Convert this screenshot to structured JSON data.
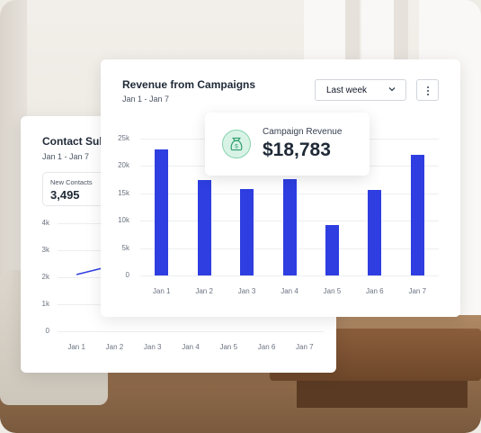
{
  "colors": {
    "bar": "#2e3ee0",
    "line": "#2e3ee0",
    "icon_bg": "#d8f3e6",
    "icon_stroke": "#2f9e6e"
  },
  "contacts_card": {
    "title": "Contact Subscriptions",
    "date_range": "Jan 1 - Jan 7",
    "stat": {
      "label": "New Contacts",
      "value": "3,495"
    }
  },
  "revenue_card": {
    "title": "Revenue from Campaigns",
    "date_range": "Jan 1 - Jan 7",
    "dropdown": {
      "selected": "Last week",
      "icon": "chevron-down-icon"
    },
    "menu_icon": "kebab-menu-icon"
  },
  "revenue_popup": {
    "label": "Campaign Revenue",
    "value": "$18,783",
    "icon": "money-bag-icon"
  },
  "chart_data": [
    {
      "type": "bar",
      "title": "Revenue from Campaigns",
      "categories": [
        "Jan 1",
        "Jan 2",
        "Jan 3",
        "Jan 4",
        "Jan 5",
        "Jan 6",
        "Jan 7"
      ],
      "values": [
        23000,
        17500,
        15800,
        17600,
        9200,
        15700,
        22000
      ],
      "ylim": [
        0,
        25000
      ],
      "yticks": [
        "0",
        "5k",
        "10k",
        "15k",
        "20k",
        "25k"
      ],
      "grid": true
    },
    {
      "type": "line",
      "title": "Contact Subscriptions",
      "categories": [
        "Jan 1",
        "Jan 2",
        "Jan 3",
        "Jan 4",
        "Jan 5",
        "Jan 6",
        "Jan 7"
      ],
      "visible_values": [
        2100,
        2450
      ],
      "ylim": [
        0,
        4000
      ],
      "yticks": [
        "0",
        "1k",
        "2k",
        "3k",
        "4k"
      ],
      "grid": true
    }
  ]
}
